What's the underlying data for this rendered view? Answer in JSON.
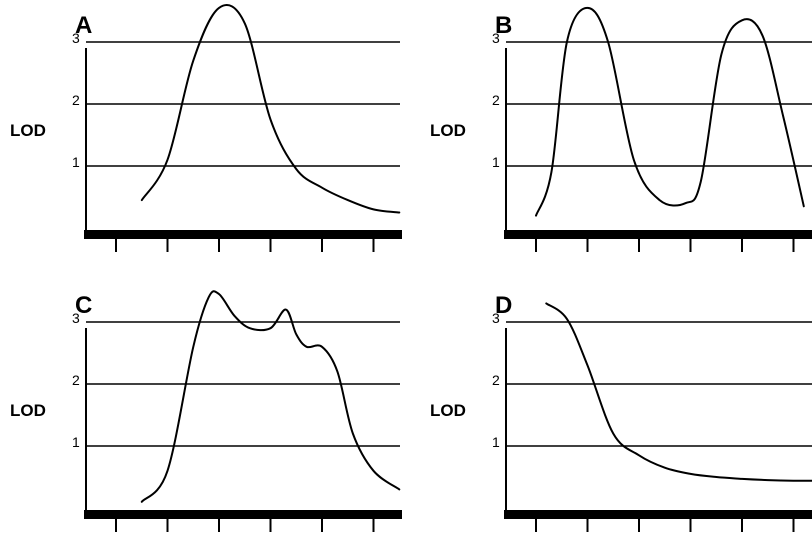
{
  "chart_data": [
    {
      "type": "line",
      "title": "A",
      "ylabel": "LOD",
      "yticks": [
        "1",
        "2",
        "3"
      ],
      "ylim": [
        0,
        4
      ],
      "x_tick_count": 6,
      "grid": true,
      "series": [
        {
          "x": [
            0.5,
            1.0,
            1.5,
            2.0,
            2.5,
            3.0,
            3.5,
            4.0,
            4.5,
            5.0,
            5.5
          ],
          "values": [
            0.45,
            1.1,
            2.7,
            3.55,
            3.3,
            1.75,
            0.95,
            0.65,
            0.45,
            0.3,
            0.25
          ]
        }
      ]
    },
    {
      "type": "line",
      "title": "B",
      "ylabel": "LOD",
      "yticks": [
        "1",
        "2",
        "3"
      ],
      "ylim": [
        0,
        4
      ],
      "x_tick_count": 6,
      "grid": true,
      "series": [
        {
          "x": [
            0.0,
            0.3,
            0.6,
            1.0,
            1.4,
            1.9,
            2.4,
            2.9,
            3.2,
            3.6,
            4.0,
            4.4,
            4.8,
            5.2
          ],
          "values": [
            0.2,
            0.9,
            3.0,
            3.55,
            3.0,
            1.1,
            0.45,
            0.4,
            0.75,
            2.8,
            3.35,
            3.1,
            1.8,
            0.35
          ]
        }
      ]
    },
    {
      "type": "line",
      "title": "C",
      "ylabel": "LOD",
      "yticks": [
        "1",
        "2",
        "3"
      ],
      "ylim": [
        0,
        4
      ],
      "x_tick_count": 6,
      "grid": true,
      "series": [
        {
          "x": [
            0.5,
            1.0,
            1.5,
            1.8,
            2.0,
            2.3,
            2.6,
            3.0,
            3.3,
            3.5,
            3.7,
            4.0,
            4.3,
            4.6,
            5.0,
            5.5
          ],
          "values": [
            0.1,
            0.6,
            2.6,
            3.4,
            3.45,
            3.1,
            2.9,
            2.9,
            3.2,
            2.8,
            2.6,
            2.6,
            2.2,
            1.2,
            0.6,
            0.3
          ]
        }
      ]
    },
    {
      "type": "line",
      "title": "D",
      "ylabel": "LOD",
      "yticks": [
        "1",
        "2",
        "3"
      ],
      "ylim": [
        0,
        4
      ],
      "x_tick_count": 6,
      "grid": true,
      "series": [
        {
          "x": [
            0.2,
            0.6,
            1.0,
            1.5,
            2.0,
            2.5,
            3.0,
            3.5,
            4.0,
            4.5,
            5.0,
            5.5
          ],
          "values": [
            3.3,
            3.05,
            2.3,
            1.2,
            0.85,
            0.65,
            0.55,
            0.5,
            0.47,
            0.45,
            0.44,
            0.44
          ]
        }
      ]
    }
  ]
}
